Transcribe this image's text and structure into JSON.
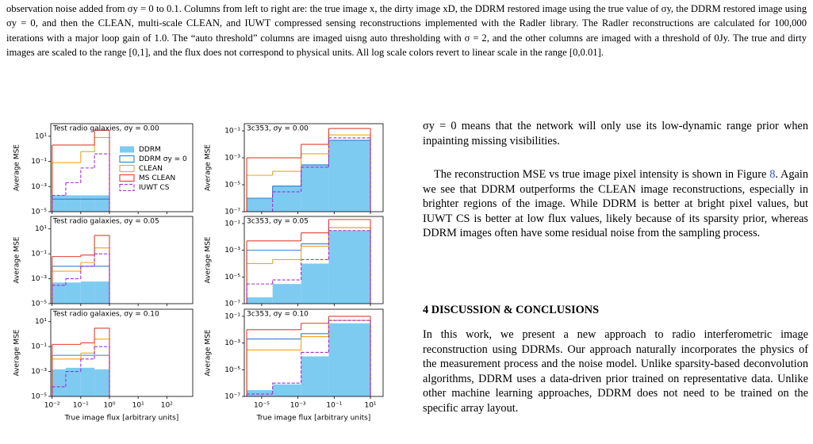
{
  "caption": "observation noise added from σy = 0 to 0.1. Columns from left to right are: the true image x, the dirty image xD, the DDRM restored image using the true value of σy, the DDRM restored image using σy = 0, and then the CLEAN, multi-scale CLEAN, and IUWT compressed sensing reconstructions implemented with the Radler library. The Radler reconstructions are calculated for 100,000 iterations with a major loop gain of 1.0. The “auto threshold” columns are imaged uisng auto thresholding with σ = 2, and the other columns are imaged with a threshold of 0Jy. The true and dirty images are scaled to the range [0,1], and the flux does not correspond to physical units. All log scale colors revert to linear scale in the range [0,0.01].",
  "figure": {
    "type": "step",
    "log_x": true,
    "log_y": true,
    "legend": "center right",
    "series": [
      {
        "name": "DDRM",
        "color": "#7ecbf2",
        "fill": true
      },
      {
        "name": "DDRM σy = 0",
        "color": "#2f7fd0"
      },
      {
        "name": "CLEAN",
        "color": "#f5a31a"
      },
      {
        "name": "MS CLEAN",
        "color": "#e0402f"
      },
      {
        "name": "IUWT CS",
        "color": "#a030d0",
        "dashed": true
      }
    ],
    "columns": [
      {
        "xlabel": "True image flux [arbitrary units]",
        "ylabel": "Average MSE",
        "xlim": [
          0.009,
          800
        ],
        "xticks": [
          {
            "value": 0.01,
            "label": "10⁻²"
          },
          {
            "value": 0.1,
            "label": "10⁻¹"
          },
          {
            "value": 1,
            "label": "10⁰"
          },
          {
            "value": 10,
            "label": "10¹"
          },
          {
            "value": 100,
            "label": "10²"
          }
        ],
        "bins": [
          0.01,
          0.03,
          0.1,
          0.3,
          1
        ],
        "ylim": [
          1e-05,
          100
        ],
        "yticks": [
          {
            "value": 1e-05,
            "label": "10⁻⁵"
          },
          {
            "value": 0.001,
            "label": "10⁻³"
          },
          {
            "value": 0.1,
            "label": "10⁻¹"
          },
          {
            "value": 10,
            "label": "10¹"
          }
        ],
        "panels": [
          {
            "title": "Test radio galaxies, σy = 0.00",
            "values": [
              [
                0.0002,
                0.0002,
                0.0002,
                0.0002
              ],
              [
                0.0001,
                0.0001,
                0.0001,
                0.0001
              ],
              [
                0.08,
                0.08,
                0.6,
                8
              ],
              [
                2,
                2,
                2,
                30
              ],
              [
                0.0002,
                0.002,
                0.03,
                0.4
              ]
            ]
          },
          {
            "title": "Test radio galaxies, σy = 0.05",
            "values": [
              [
                0.0005,
                0.0005,
                0.0006,
                0.0006
              ],
              [
                0.01,
                0.01,
                0.01,
                0.01
              ],
              [
                0.004,
                0.004,
                0.02,
                0.3
              ],
              [
                0.06,
                0.06,
                0.08,
                3
              ],
              [
                0.0003,
                0.001,
                0.01,
                0.1
              ]
            ]
          },
          {
            "title": "Test radio galaxies, σy = 0.10",
            "values": [
              [
                0.0015,
                0.002,
                0.002,
                0.0015
              ],
              [
                0.02,
                0.02,
                0.02,
                0.02
              ],
              [
                0.01,
                0.01,
                0.03,
                0.4
              ],
              [
                0.15,
                0.15,
                0.2,
                3
              ],
              [
                6e-05,
                0.001,
                0.01,
                0.1
              ]
            ]
          }
        ]
      },
      {
        "xlabel": "True image flux [arbitrary units]",
        "ylabel": "Average MSE",
        "xlim": [
          1.1e-06,
          50
        ],
        "xticks": [
          {
            "value": 1e-05,
            "label": "10⁻⁵"
          },
          {
            "value": 0.001,
            "label": "10⁻³"
          },
          {
            "value": 0.1,
            "label": "10⁻¹"
          },
          {
            "value": 10,
            "label": "10¹"
          }
        ],
        "bins": [
          1.5e-06,
          4e-05,
          0.0015,
          0.05,
          10
        ],
        "ylim": [
          1e-07,
          0.34
        ],
        "yticks": [
          {
            "value": 1e-07,
            "label": "10⁻⁷"
          },
          {
            "value": 1e-05,
            "label": "10⁻⁵"
          },
          {
            "value": 0.001,
            "label": "10⁻³"
          },
          {
            "value": 0.1,
            "label": "10⁻¹"
          }
        ],
        "panels": [
          {
            "title": "3c353, σy = 0.00",
            "values": [
              [
                1e-06,
                8e-06,
                0.0003,
                0.02
              ],
              [
                1e-06,
                8e-06,
                0.0003,
                0.02
              ],
              [
                5e-05,
                0.0001,
                0.002,
                0.05
              ],
              [
                0.001,
                0.001,
                0.01,
                0.15
              ],
              [
                1e-07,
                3e-06,
                0.0002,
                0.03
              ]
            ]
          },
          {
            "title": "3c353, σy = 0.05",
            "values": [
              [
                3e-07,
                3e-06,
                0.0001,
                0.03
              ],
              [
                0.001,
                0.001,
                0.003,
                0.05
              ],
              [
                0.0001,
                0.0002,
                0.002,
                0.05
              ],
              [
                0.005,
                0.005,
                0.02,
                0.2
              ],
              [
                3e-06,
                6e-06,
                0.0002,
                0.03
              ]
            ]
          },
          {
            "title": "3c353, σy = 0.10",
            "values": [
              [
                3e-07,
                8e-07,
                0.0001,
                0.03
              ],
              [
                0.002,
                0.002,
                0.005,
                0.05
              ],
              [
                0.0003,
                0.0003,
                0.003,
                0.05
              ],
              [
                0.01,
                0.01,
                0.03,
                0.1
              ],
              [
                1.5e-07,
                1e-06,
                0.0002,
                0.05
              ]
            ]
          }
        ]
      }
    ]
  },
  "body": {
    "p1": "σy = 0 means that the network will only use its low-dynamic range prior when inpainting missing visibilities.",
    "p2": [
      "The reconstruction MSE vs true image pixel intensity is shown in Figure ",
      "8",
      ". Again we see that DDRM outperforms the CLEAN image reconstructions, especially in brighter regions of the image. While DDRM is better at bright pixel values, but IUWT CS is better at low flux values, likely because of its sparsity prior, whereas DDRM images often have some residual noise from the sampling process."
    ],
    "heading": "4 DISCUSSION & CONCLUSIONS",
    "p3": "In this work, we present a new approach to radio interferometric image reconstruction using DDRMs. Our approach naturally incorporates the physics of the measurement process and the noise model. Unlike sparsity-based deconvolution algorithms, DDRM uses a data-driven prior trained on representative data. Unlike other machine learning approaches, DDRM does not need to be trained on the specific array layout."
  }
}
